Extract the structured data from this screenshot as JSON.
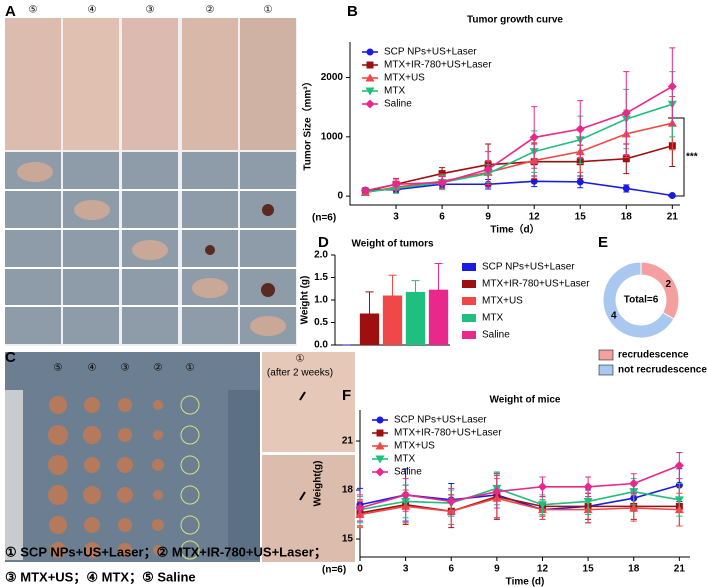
{
  "panels": [
    "A",
    "B",
    "C",
    "D",
    "E",
    "F"
  ],
  "photo_a": {
    "columns": [
      "⑤",
      "④",
      "③",
      "②",
      "①"
    ]
  },
  "photo_c": {
    "columns": [
      "⑤",
      "④",
      "③",
      "②",
      "①"
    ],
    "after_marker": "①",
    "after_label": "(after 2 weeks)"
  },
  "caption": [
    "① SCP NPs+US+Laser；② MTX+IR-780+US+Laser；",
    "③ MTX+US；④ MTX；⑤ Saline"
  ],
  "chart_data": [
    {
      "type": "line",
      "title": "Tumor growth curve",
      "xlabel": "Time（d）",
      "ylabel": "Tumor Size（mm³）",
      "annotations": [
        "(n=6)",
        "***"
      ],
      "x": [
        1,
        3,
        6,
        9,
        12,
        15,
        18,
        21
      ],
      "xlim": [
        0,
        21.5
      ],
      "xticks": [
        3,
        6,
        9,
        12,
        15,
        18,
        21
      ],
      "ylim": [
        -150,
        2600
      ],
      "yticks": [
        0,
        1000,
        2000
      ],
      "legend": "upper left",
      "series": [
        {
          "name": "SCP NPs+US+Laser",
          "color": "#1a1ae6",
          "marker": "circle",
          "values": [
            100,
            110,
            200,
            200,
            250,
            240,
            130,
            10
          ],
          "errors": [
            40,
            50,
            60,
            80,
            90,
            100,
            60,
            10
          ]
        },
        {
          "name": "MTX+IR-780+US+Laser",
          "color": "#9e1010",
          "marker": "square",
          "values": [
            80,
            200,
            380,
            530,
            580,
            580,
            630,
            850
          ],
          "errors": [
            40,
            90,
            100,
            350,
            300,
            280,
            250,
            350
          ]
        },
        {
          "name": "MTX+US",
          "color": "#f04848",
          "marker": "triangle",
          "values": [
            60,
            150,
            250,
            400,
            600,
            750,
            1050,
            1230
          ],
          "errors": [
            40,
            100,
            120,
            200,
            300,
            350,
            400,
            450
          ]
        },
        {
          "name": "MTX",
          "color": "#1fbf7f",
          "marker": "down",
          "values": [
            70,
            130,
            230,
            380,
            750,
            950,
            1300,
            1550
          ],
          "errors": [
            40,
            80,
            120,
            150,
            350,
            400,
            500,
            550
          ]
        },
        {
          "name": "Saline",
          "color": "#e8288a",
          "marker": "diamond",
          "values": [
            90,
            200,
            230,
            450,
            990,
            1130,
            1400,
            1850
          ],
          "errors": [
            50,
            100,
            100,
            300,
            520,
            480,
            700,
            650
          ]
        }
      ]
    },
    {
      "type": "bar",
      "title": "Weight of tumors",
      "ylabel": "Weight (g)",
      "categories": [
        "SCP NPs+US+Laser",
        "MTX+IR-780+US+Laser",
        "MTX+US",
        "MTX",
        "Saline"
      ],
      "values": [
        0,
        0.7,
        1.1,
        1.18,
        1.23
      ],
      "errors": [
        0,
        0.48,
        0.45,
        0.25,
        0.58
      ],
      "colors": [
        "#1a1ae6",
        "#9e1010",
        "#f04848",
        "#1fbf7f",
        "#e8288a"
      ],
      "ylim": [
        0,
        2
      ],
      "yticks": [
        {
          "value": 0,
          "label": "0.0"
        },
        {
          "value": 0.5,
          "label": "0.5"
        },
        {
          "value": 1,
          "label": "1.0"
        },
        {
          "value": 1.5,
          "label": "1.5"
        },
        {
          "value": 2,
          "label": "2.0"
        }
      ],
      "legend": "right"
    },
    {
      "type": "pie",
      "categories": [
        "recrudescence",
        "not recrudescence"
      ],
      "values": [
        2,
        4
      ],
      "colors": [
        "#f4a0a0",
        "#a8c8f0"
      ],
      "center_text": "Total=6",
      "legend": "bottom"
    },
    {
      "type": "line",
      "title": "Weight of mice",
      "xlabel": "Time (d)",
      "ylabel": "Weight(g)",
      "annotations": [
        "(n=6)"
      ],
      "x": [
        0,
        3,
        6,
        9,
        12,
        15,
        18,
        21
      ],
      "xlim": [
        0,
        21.7
      ],
      "xticks": [
        0,
        3,
        6,
        9,
        12,
        15,
        18,
        21
      ],
      "ylim": [
        13.9,
        22.9
      ],
      "yticks": [
        15,
        18,
        21
      ],
      "legend": "upper left",
      "series": [
        {
          "name": "SCP NPs+US+Laser",
          "color": "#1a1ae6",
          "marker": "circle",
          "values": [
            17.1,
            17.7,
            17.4,
            17.7,
            16.8,
            17.0,
            17.5,
            18.3
          ],
          "errors": [
            1.0,
            1.6,
            1.0,
            1.4,
            0.6,
            1.0,
            0.8,
            1.0
          ]
        },
        {
          "name": "MTX+IR-780+US+Laser",
          "color": "#9e1010",
          "marker": "square",
          "values": [
            16.6,
            17.1,
            16.7,
            17.6,
            17.0,
            17.0,
            17.0,
            17.0
          ],
          "errors": [
            0.8,
            1.2,
            1.0,
            1.4,
            0.6,
            0.8,
            0.8,
            1.2
          ]
        },
        {
          "name": "MTX+US",
          "color": "#f04848",
          "marker": "triangle",
          "values": [
            16.5,
            17.0,
            16.7,
            17.5,
            16.8,
            16.8,
            16.9,
            16.8
          ],
          "errors": [
            0.8,
            1.0,
            0.8,
            1.2,
            0.6,
            0.8,
            0.8,
            1.0
          ]
        },
        {
          "name": "MTX",
          "color": "#1fbf7f",
          "marker": "down",
          "values": [
            16.8,
            17.3,
            17.2,
            18.1,
            17.1,
            17.3,
            17.9,
            17.4
          ],
          "errors": [
            0.8,
            1.0,
            0.8,
            1.0,
            0.6,
            0.8,
            0.8,
            1.0
          ]
        },
        {
          "name": "Saline",
          "color": "#e8288a",
          "marker": "diamond",
          "values": [
            16.9,
            17.7,
            17.3,
            17.9,
            18.2,
            18.2,
            18.4,
            19.5
          ],
          "errors": [
            0.8,
            1.0,
            0.8,
            1.0,
            0.6,
            0.6,
            0.6,
            0.8
          ]
        }
      ]
    }
  ]
}
